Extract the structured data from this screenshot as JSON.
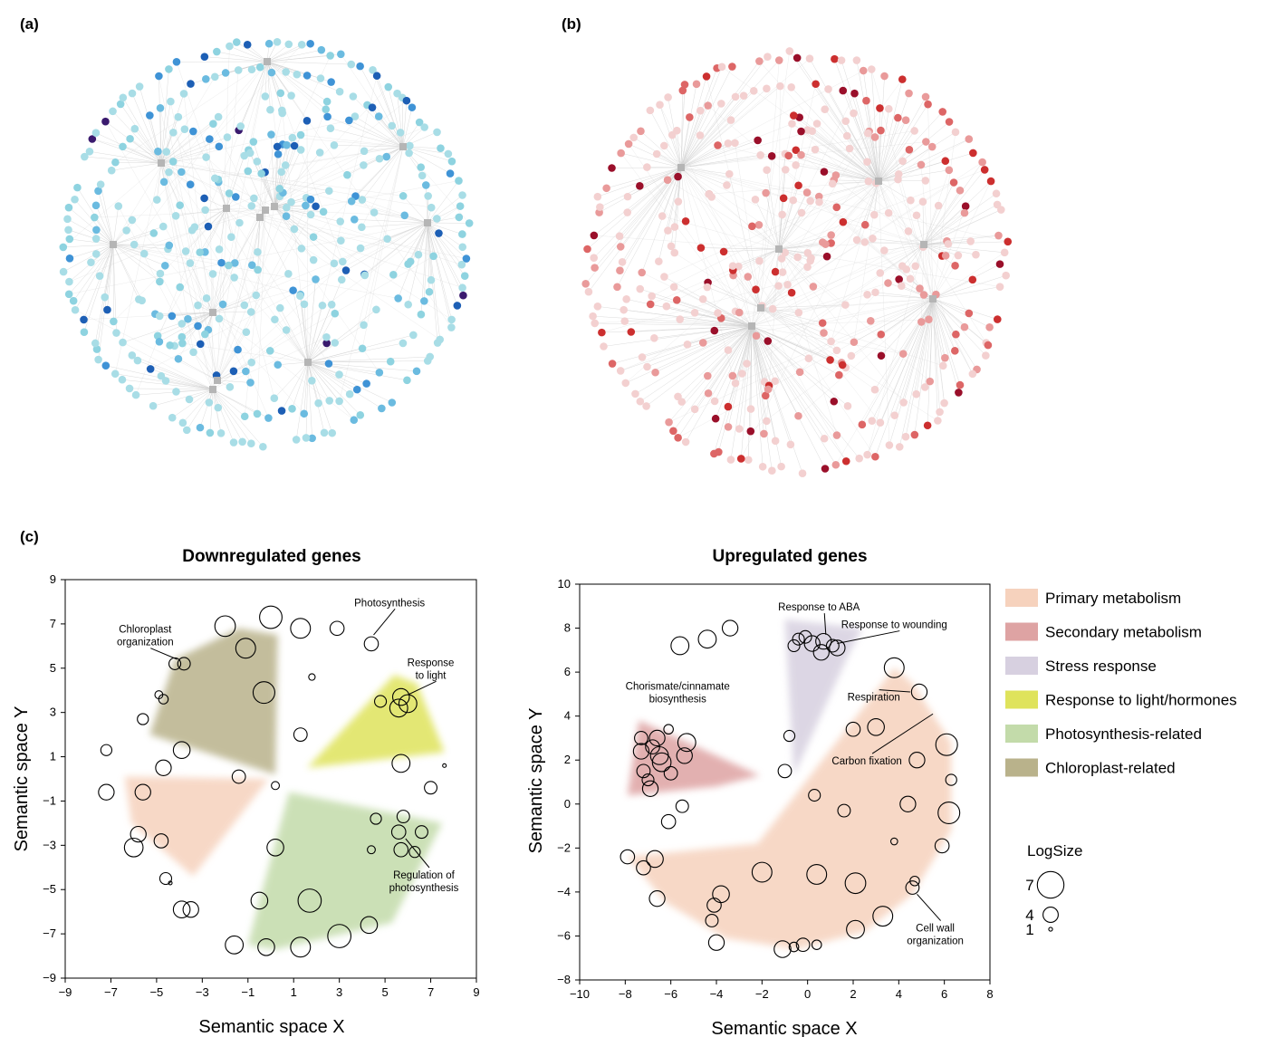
{
  "panels": {
    "a": {
      "label": "(a)",
      "node_color_range": [
        "#a8dde6",
        "#8ed3e0",
        "#6bbbe0",
        "#3f93d6",
        "#1d5fb5",
        "#3a1a6e"
      ]
    },
    "b": {
      "label": "(b)",
      "node_color_range": [
        "#f3d0d0",
        "#e99a9a",
        "#dd6666",
        "#cc2f2f",
        "#9a0f2a"
      ]
    },
    "c": {
      "label": "(c)"
    }
  },
  "legend": {
    "items": [
      {
        "label": "Primary metabolism",
        "color": "#f6d2bd"
      },
      {
        "label": "Secondary metabolism",
        "color": "#dea3a3"
      },
      {
        "label": "Stress response",
        "color": "#d7d0e0"
      },
      {
        "label": "Response to light/hormones",
        "color": "#dfe35c"
      },
      {
        "label": "Photosynthesis-related",
        "color": "#c3dbaa"
      },
      {
        "label": "Chloroplast-related",
        "color": "#b9b28b"
      }
    ],
    "size_title": "LogSize",
    "size_labels": [
      "7",
      "4",
      "1"
    ]
  },
  "chart_data": [
    {
      "type": "scatter",
      "title": "Downregulated genes",
      "xlabel": "Semantic space X",
      "ylabel": "Semantic space Y",
      "xlim": [
        -9,
        9
      ],
      "ylim": [
        -9,
        9
      ],
      "xticks": [
        -9,
        -7,
        -5,
        -3,
        -1,
        1,
        3,
        5,
        7,
        9
      ],
      "yticks": [
        -9,
        -7,
        -5,
        -3,
        -1,
        1,
        3,
        5,
        7,
        9
      ],
      "regions": [
        {
          "category": "Chloroplast-related",
          "color": "#b9b28b",
          "points": [
            [
              -4.2,
              5.4
            ],
            [
              -1.4,
              6.8
            ],
            [
              0.3,
              6.5
            ],
            [
              0.2,
              0.2
            ],
            [
              -5.3,
              2.0
            ]
          ]
        },
        {
          "category": "Response to light/hormones",
          "color": "#dfe35c",
          "points": [
            [
              1.6,
              0.5
            ],
            [
              5.4,
              4.7
            ],
            [
              6.4,
              4.3
            ],
            [
              7.6,
              1.2
            ]
          ]
        },
        {
          "category": "Primary metabolism",
          "color": "#f6d2bd",
          "points": [
            [
              -6.4,
              0.1
            ],
            [
              -0.1,
              0.0
            ],
            [
              -3.4,
              -4.4
            ],
            [
              -6.1,
              -2.0
            ]
          ]
        },
        {
          "category": "Photosynthesis-related",
          "color": "#c3dbaa",
          "points": [
            [
              0.8,
              -0.6
            ],
            [
              7.5,
              -2.0
            ],
            [
              5.3,
              -6.5
            ],
            [
              0.2,
              -7.7
            ],
            [
              -1.0,
              -7.5
            ],
            [
              -0.5,
              -5.5
            ]
          ]
        }
      ],
      "points": [
        {
          "x": -2.0,
          "y": 6.9,
          "size": 5.4
        },
        {
          "x": 0.0,
          "y": 7.3,
          "size": 5.9
        },
        {
          "x": 1.3,
          "y": 6.8,
          "size": 5.2
        },
        {
          "x": 2.9,
          "y": 6.8,
          "size": 3.7
        },
        {
          "x": 4.4,
          "y": 6.1,
          "size": 3.7
        },
        {
          "x": -1.1,
          "y": 5.9,
          "size": 5.2
        },
        {
          "x": -4.2,
          "y": 5.2,
          "size": 3.1
        },
        {
          "x": -3.8,
          "y": 5.2,
          "size": 3.3
        },
        {
          "x": 1.8,
          "y": 4.6,
          "size": 1.7
        },
        {
          "x": -0.3,
          "y": 3.9,
          "size": 5.7
        },
        {
          "x": -4.9,
          "y": 3.8,
          "size": 2.1
        },
        {
          "x": -4.7,
          "y": 3.6,
          "size": 2.5
        },
        {
          "x": 4.8,
          "y": 3.5,
          "size": 3.1
        },
        {
          "x": 5.7,
          "y": 3.7,
          "size": 4.4
        },
        {
          "x": 5.6,
          "y": 3.2,
          "size": 4.7
        },
        {
          "x": 6.0,
          "y": 3.4,
          "size": 4.7
        },
        {
          "x": -5.6,
          "y": 2.7,
          "size": 2.9
        },
        {
          "x": 1.3,
          "y": 2.0,
          "size": 3.5
        },
        {
          "x": -7.2,
          "y": 1.3,
          "size": 2.9
        },
        {
          "x": -3.9,
          "y": 1.3,
          "size": 4.4
        },
        {
          "x": -4.7,
          "y": 0.5,
          "size": 4.1
        },
        {
          "x": 5.7,
          "y": 0.7,
          "size": 4.7
        },
        {
          "x": 7.6,
          "y": 0.6,
          "size": 0.8
        },
        {
          "x": -1.4,
          "y": 0.1,
          "size": 3.5
        },
        {
          "x": 0.2,
          "y": -0.3,
          "size": 2.1
        },
        {
          "x": -7.2,
          "y": -0.6,
          "size": 4.1
        },
        {
          "x": -5.6,
          "y": -0.6,
          "size": 4.1
        },
        {
          "x": 7.0,
          "y": -0.4,
          "size": 3.3
        },
        {
          "x": 4.6,
          "y": -1.8,
          "size": 2.9
        },
        {
          "x": 5.8,
          "y": -1.7,
          "size": 3.3
        },
        {
          "x": -5.8,
          "y": -2.5,
          "size": 4.1
        },
        {
          "x": -4.8,
          "y": -2.8,
          "size": 3.7
        },
        {
          "x": 5.6,
          "y": -2.4,
          "size": 3.7
        },
        {
          "x": 6.6,
          "y": -2.4,
          "size": 3.3
        },
        {
          "x": -6.0,
          "y": -3.1,
          "size": 4.9
        },
        {
          "x": 0.2,
          "y": -3.1,
          "size": 4.4
        },
        {
          "x": 4.4,
          "y": -3.2,
          "size": 2.1
        },
        {
          "x": 5.7,
          "y": -3.2,
          "size": 3.7
        },
        {
          "x": 6.3,
          "y": -3.3,
          "size": 2.9
        },
        {
          "x": -4.6,
          "y": -4.5,
          "size": 3.1
        },
        {
          "x": -4.4,
          "y": -4.7,
          "size": 0.8
        },
        {
          "x": -0.5,
          "y": -5.5,
          "size": 4.4
        },
        {
          "x": 1.7,
          "y": -5.5,
          "size": 6.1
        },
        {
          "x": -3.9,
          "y": -5.9,
          "size": 4.4
        },
        {
          "x": -3.5,
          "y": -5.9,
          "size": 4.1
        },
        {
          "x": 4.3,
          "y": -6.6,
          "size": 4.4
        },
        {
          "x": 3.0,
          "y": -7.1,
          "size": 6.1
        },
        {
          "x": -1.6,
          "y": -7.5,
          "size": 4.7
        },
        {
          "x": -0.2,
          "y": -7.6,
          "size": 4.4
        },
        {
          "x": 1.3,
          "y": -7.6,
          "size": 5.2
        }
      ],
      "annotations": [
        {
          "lines": [
            "Chloroplast",
            "organization"
          ],
          "x": -5.5,
          "y": 6.6,
          "tx": -4.1,
          "ty": 5.4
        },
        {
          "lines": [
            "Photosynthesis"
          ],
          "x": 5.2,
          "y": 7.8,
          "tx": 4.5,
          "ty": 6.5
        },
        {
          "lines": [
            "Response",
            "to light"
          ],
          "x": 7.0,
          "y": 5.1,
          "tx": 6.0,
          "ty": 3.8
        },
        {
          "lines": [
            "Regulation of",
            "photosynthesis"
          ],
          "x": 6.7,
          "y": -4.5,
          "tx": 5.9,
          "ty": -2.7
        }
      ]
    },
    {
      "type": "scatter",
      "title": "Upregulated genes",
      "xlabel": "Semantic space X",
      "ylabel": "Semantic space Y",
      "xlim": [
        -10,
        8
      ],
      "ylim": [
        -8,
        10
      ],
      "xticks": [
        -10,
        -8,
        -6,
        -4,
        -2,
        0,
        2,
        4,
        6,
        8
      ],
      "yticks": [
        -8,
        -6,
        -4,
        -2,
        0,
        2,
        4,
        6,
        8,
        10
      ],
      "regions": [
        {
          "category": "Stress response",
          "color": "#d7d0e0",
          "points": [
            [
              -1.0,
              8.4
            ],
            [
              2.4,
              8.0
            ],
            [
              1.8,
              6.8
            ],
            [
              -0.6,
              1.3
            ]
          ]
        },
        {
          "category": "Secondary metabolism",
          "color": "#dea3a3",
          "points": [
            [
              -7.9,
              0.4
            ],
            [
              -7.4,
              3.8
            ],
            [
              -2.1,
              1.3
            ],
            [
              -4.0,
              0.8
            ]
          ]
        },
        {
          "category": "Primary metabolism",
          "color": "#f6d2bd",
          "points": [
            [
              -7.9,
              -2.4
            ],
            [
              -2.2,
              -1.8
            ],
            [
              3.8,
              6.2
            ],
            [
              4.6,
              5.5
            ],
            [
              6.3,
              2.8
            ],
            [
              6.3,
              -1.2
            ],
            [
              4.6,
              -4.1
            ],
            [
              2.5,
              -5.8
            ],
            [
              -0.5,
              -6.6
            ],
            [
              -3.6,
              -6.1
            ],
            [
              -6.2,
              -4.5
            ]
          ]
        }
      ],
      "points": [
        {
          "x": -3.4,
          "y": 8.0,
          "size": 4.1
        },
        {
          "x": -4.4,
          "y": 7.5,
          "size": 4.7
        },
        {
          "x": -5.6,
          "y": 7.2,
          "size": 4.7
        },
        {
          "x": -0.6,
          "y": 7.2,
          "size": 3.1
        },
        {
          "x": -0.4,
          "y": 7.5,
          "size": 3.1
        },
        {
          "x": -0.1,
          "y": 7.6,
          "size": 3.3
        },
        {
          "x": 0.2,
          "y": 7.3,
          "size": 4.1
        },
        {
          "x": 0.7,
          "y": 7.4,
          "size": 4.1
        },
        {
          "x": 1.1,
          "y": 7.2,
          "size": 3.3
        },
        {
          "x": 1.3,
          "y": 7.1,
          "size": 4.1
        },
        {
          "x": 0.6,
          "y": 6.9,
          "size": 4.1
        },
        {
          "x": 3.8,
          "y": 6.2,
          "size": 5.2
        },
        {
          "x": 4.9,
          "y": 5.1,
          "size": 4.1
        },
        {
          "x": 2.0,
          "y": 3.4,
          "size": 3.7
        },
        {
          "x": 3.0,
          "y": 3.5,
          "size": 4.4
        },
        {
          "x": 6.1,
          "y": 2.7,
          "size": 5.7
        },
        {
          "x": -7.3,
          "y": 3.0,
          "size": 3.5
        },
        {
          "x": -6.6,
          "y": 3.0,
          "size": 4.1
        },
        {
          "x": -6.1,
          "y": 3.4,
          "size": 2.5
        },
        {
          "x": -5.3,
          "y": 2.8,
          "size": 4.7
        },
        {
          "x": -6.8,
          "y": 2.6,
          "size": 3.7
        },
        {
          "x": -7.3,
          "y": 2.4,
          "size": 4.1
        },
        {
          "x": -6.5,
          "y": 2.2,
          "size": 4.7
        },
        {
          "x": -5.4,
          "y": 2.2,
          "size": 4.1
        },
        {
          "x": -6.4,
          "y": 1.9,
          "size": 4.9
        },
        {
          "x": -6.0,
          "y": 1.4,
          "size": 3.5
        },
        {
          "x": -7.2,
          "y": 1.5,
          "size": 3.5
        },
        {
          "x": -7.0,
          "y": 1.1,
          "size": 3.1
        },
        {
          "x": -6.9,
          "y": 0.7,
          "size": 4.1
        },
        {
          "x": -0.8,
          "y": 3.1,
          "size": 2.9
        },
        {
          "x": -1.0,
          "y": 1.5,
          "size": 3.5
        },
        {
          "x": 4.8,
          "y": 2.0,
          "size": 4.1
        },
        {
          "x": 6.3,
          "y": 1.1,
          "size": 2.9
        },
        {
          "x": 0.3,
          "y": 0.4,
          "size": 3.1
        },
        {
          "x": -5.5,
          "y": -0.1,
          "size": 3.3
        },
        {
          "x": 1.6,
          "y": -0.3,
          "size": 3.3
        },
        {
          "x": 4.4,
          "y": 0.0,
          "size": 4.1
        },
        {
          "x": -6.1,
          "y": -0.8,
          "size": 3.7
        },
        {
          "x": 6.2,
          "y": -0.4,
          "size": 5.7
        },
        {
          "x": 3.8,
          "y": -1.7,
          "size": 1.8
        },
        {
          "x": 5.9,
          "y": -1.9,
          "size": 3.7
        },
        {
          "x": -7.9,
          "y": -2.4,
          "size": 3.7
        },
        {
          "x": -6.7,
          "y": -2.5,
          "size": 4.4
        },
        {
          "x": -7.2,
          "y": -2.9,
          "size": 3.7
        },
        {
          "x": -2.0,
          "y": -3.1,
          "size": 5.2
        },
        {
          "x": 0.4,
          "y": -3.2,
          "size": 5.2
        },
        {
          "x": 2.1,
          "y": -3.6,
          "size": 5.4
        },
        {
          "x": 4.7,
          "y": -3.5,
          "size": 2.5
        },
        {
          "x": 4.6,
          "y": -3.8,
          "size": 3.5
        },
        {
          "x": -3.8,
          "y": -4.1,
          "size": 4.4
        },
        {
          "x": -4.1,
          "y": -4.6,
          "size": 3.7
        },
        {
          "x": -4.2,
          "y": -5.3,
          "size": 3.3
        },
        {
          "x": -6.6,
          "y": -4.3,
          "size": 4.1
        },
        {
          "x": 3.3,
          "y": -5.1,
          "size": 5.2
        },
        {
          "x": 2.1,
          "y": -5.7,
          "size": 4.7
        },
        {
          "x": -4.0,
          "y": -6.3,
          "size": 4.1
        },
        {
          "x": -1.1,
          "y": -6.6,
          "size": 4.4
        },
        {
          "x": -0.6,
          "y": -6.5,
          "size": 2.5
        },
        {
          "x": -0.2,
          "y": -6.4,
          "size": 3.5
        },
        {
          "x": 0.4,
          "y": -6.4,
          "size": 2.5
        }
      ],
      "annotations": [
        {
          "lines": [
            "Response to ABA"
          ],
          "x": 0.5,
          "y": 8.8,
          "tx": 0.8,
          "ty": 7.7
        },
        {
          "lines": [
            "Response to wounding"
          ],
          "x": 3.8,
          "y": 8.0,
          "tx": 1.3,
          "ty": 7.3
        },
        {
          "lines": [
            "Chorismate/cinnamate",
            "biosynthesis"
          ],
          "x": -5.7,
          "y": 5.2,
          "tx": null,
          "ty": null
        },
        {
          "lines": [
            "Respiration"
          ],
          "x": 2.9,
          "y": 4.7,
          "tx": 4.5,
          "ty": 5.1
        },
        {
          "lines": [
            "Carbon fixation"
          ],
          "x": 2.6,
          "y": 1.8,
          "tx": 5.5,
          "ty": 4.1
        },
        {
          "lines": [
            "Cell wall",
            "organization"
          ],
          "x": 5.6,
          "y": -5.8,
          "tx": 4.8,
          "ty": -4.1
        }
      ]
    }
  ]
}
